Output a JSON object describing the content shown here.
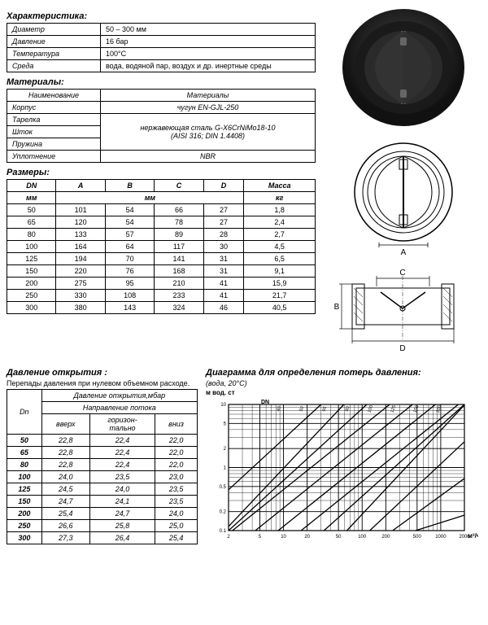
{
  "sections": {
    "char_title": "Характеристика:",
    "mat_title": "Материалы:",
    "size_title": "Размеры:",
    "press_title": "Давление открытия :",
    "press_sub": "Перепады давления при нулевом объемном расходе.",
    "chart_title": "Диаграмма для определения потерь давления:",
    "chart_sub": "(вода, 20°C)"
  },
  "char": {
    "rows": [
      [
        "Диаметр",
        "50 – 300 мм"
      ],
      [
        "Давление",
        "16 бар"
      ],
      [
        "Температура",
        "100°C"
      ],
      [
        "Среда",
        "вода, водяной пар, воздух и др. инертные среды"
      ]
    ]
  },
  "mat": {
    "headers": [
      "Наименование",
      "Материалы"
    ],
    "rows": [
      {
        "name": "Корпус",
        "val": "чугун EN-GJL-250",
        "rowspan": 1
      },
      {
        "name": "Тарелка",
        "val": "нержавеющая сталь G-X6CrNiMo18-10\n(AISI 316; DIN 1.4408)",
        "rowspan": 3
      },
      {
        "name": "Шток",
        "val": "",
        "rowspan": 0
      },
      {
        "name": "Пружина",
        "val": "",
        "rowspan": 0
      },
      {
        "name": "Уплотнение",
        "val": "NBR",
        "rowspan": 1
      }
    ]
  },
  "size": {
    "headers": [
      "DN",
      "A",
      "B",
      "C",
      "D",
      "Масса"
    ],
    "units": [
      "мм",
      "мм",
      "кг"
    ],
    "rows": [
      [
        "50",
        "101",
        "54",
        "66",
        "27",
        "1,8"
      ],
      [
        "65",
        "120",
        "54",
        "78",
        "27",
        "2,4"
      ],
      [
        "80",
        "133",
        "57",
        "89",
        "28",
        "2,7"
      ],
      [
        "100",
        "164",
        "64",
        "117",
        "30",
        "4,5"
      ],
      [
        "125",
        "194",
        "70",
        "141",
        "31",
        "6,5"
      ],
      [
        "150",
        "220",
        "76",
        "168",
        "31",
        "9,1"
      ],
      [
        "200",
        "275",
        "95",
        "210",
        "41",
        "15,9"
      ],
      [
        "250",
        "330",
        "108",
        "233",
        "41",
        "21,7"
      ],
      [
        "300",
        "380",
        "143",
        "324",
        "46",
        "40,5"
      ]
    ]
  },
  "press": {
    "h1": "Давление открытия,мбар",
    "h2": "Направление потока",
    "cols": [
      "Dn",
      "вверх",
      "горизон-\nтально",
      "вниз"
    ],
    "rows": [
      [
        "50",
        "22,8",
        "22,4",
        "22,0"
      ],
      [
        "65",
        "22,8",
        "22,4",
        "22,0"
      ],
      [
        "80",
        "22,8",
        "22,4",
        "22,0"
      ],
      [
        "100",
        "24,0",
        "23,5",
        "23,0"
      ],
      [
        "125",
        "24,5",
        "24,0",
        "23,5"
      ],
      [
        "150",
        "24,7",
        "24,1",
        "23,5"
      ],
      [
        "200",
        "25,4",
        "24,7",
        "24,0"
      ],
      [
        "250",
        "26,6",
        "25,8",
        "25,0"
      ],
      [
        "300",
        "27,3",
        "26,4",
        "25,4"
      ]
    ]
  },
  "chart": {
    "ylabel": "м вод. ст",
    "xlabel": "м³/ч",
    "dn_label": "DN",
    "dn_values": [
      "40",
      "50",
      "65",
      "80",
      "100",
      "125",
      "150",
      "200",
      "250",
      "300",
      "400",
      "500"
    ],
    "y_ticks": [
      "0.1",
      "0.2",
      "0.5",
      "1",
      "2",
      "5",
      "10"
    ],
    "x_ticks": [
      "2",
      "5",
      "10",
      "20",
      "50",
      "100",
      "200",
      "500",
      "1000",
      "2000"
    ],
    "grid_color": "#000000",
    "background_color": "#ffffff",
    "line_color": "#000000"
  },
  "diagram": {
    "labels": {
      "A": "A",
      "B": "B",
      "C": "C",
      "D": "D"
    }
  }
}
